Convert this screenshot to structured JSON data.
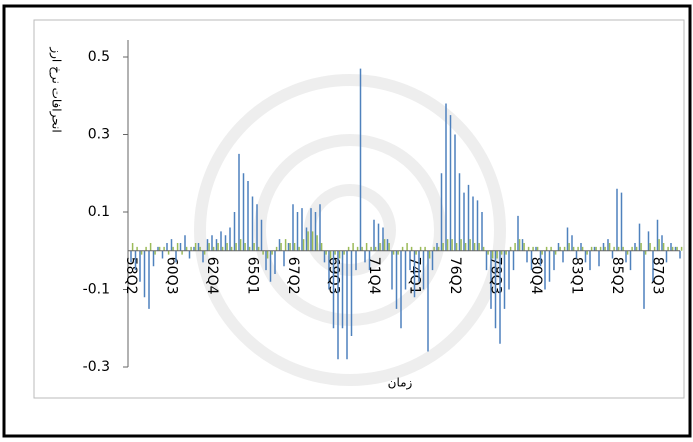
{
  "chart_data": {
    "type": "bar",
    "y_label": "انحرافات نرخ ارز",
    "x_label": "زمان",
    "categories": [
      "58Q2",
      null,
      null,
      null,
      null,
      null,
      null,
      null,
      null,
      "60Q3",
      null,
      null,
      null,
      null,
      null,
      null,
      null,
      null,
      "62Q4",
      null,
      null,
      null,
      null,
      null,
      null,
      null,
      null,
      "65Q1",
      null,
      null,
      null,
      null,
      null,
      null,
      null,
      null,
      "67Q2",
      null,
      null,
      null,
      null,
      null,
      null,
      null,
      null,
      "69Q3",
      null,
      null,
      null,
      null,
      null,
      null,
      null,
      null,
      "71Q4",
      null,
      null,
      null,
      null,
      null,
      null,
      null,
      null,
      "74Q1",
      null,
      null,
      null,
      null,
      null,
      null,
      null,
      null,
      "76Q2",
      null,
      null,
      null,
      null,
      null,
      null,
      null,
      null,
      "78Q3",
      null,
      null,
      null,
      null,
      null,
      null,
      null,
      null,
      "80Q4",
      null,
      null,
      null,
      null,
      null,
      null,
      null,
      null,
      "83Q1",
      null,
      null,
      null,
      null,
      null,
      null,
      null,
      null,
      "85Q2",
      null,
      null,
      null,
      null,
      null,
      null,
      null,
      null,
      "87Q3",
      null,
      null,
      null,
      null,
      null
    ],
    "series": [
      {
        "color": "#4f81bd",
        "values": [
          -0.03,
          -0.05,
          -0.08,
          -0.12,
          -0.15,
          -0.04,
          0.01,
          -0.02,
          0.02,
          0.03,
          -0.03,
          0.02,
          0.04,
          -0.02,
          0.01,
          0.02,
          -0.03,
          0.03,
          0.04,
          0.03,
          0.05,
          0.04,
          0.06,
          0.1,
          0.25,
          0.2,
          0.18,
          0.14,
          0.12,
          0.08,
          -0.05,
          -0.08,
          -0.06,
          0.03,
          -0.04,
          0.02,
          0.12,
          0.1,
          0.11,
          0.06,
          0.11,
          0.1,
          0.12,
          -0.03,
          -0.1,
          -0.2,
          -0.28,
          -0.2,
          -0.28,
          -0.22,
          -0.05,
          0.47,
          -0.03,
          -0.05,
          0.08,
          0.07,
          0.06,
          0.03,
          -0.1,
          -0.15,
          -0.2,
          -0.1,
          -0.05,
          -0.12,
          -0.08,
          -0.1,
          -0.26,
          -0.05,
          0.02,
          0.2,
          0.38,
          0.35,
          0.3,
          0.2,
          0.15,
          0.17,
          0.14,
          0.13,
          0.1,
          -0.05,
          -0.15,
          -0.2,
          -0.24,
          -0.15,
          -0.1,
          -0.05,
          0.09,
          0.03,
          -0.03,
          -0.05,
          0.01,
          -0.04,
          -0.1,
          -0.08,
          -0.05,
          0.02,
          -0.03,
          0.06,
          0.04,
          -0.02,
          0.02,
          -0.03,
          -0.05,
          0.01,
          -0.04,
          0.02,
          0.03,
          -0.02,
          0.16,
          0.15,
          -0.03,
          -0.05,
          0.02,
          0.07,
          -0.15,
          0.05,
          -0.08,
          0.08,
          0.04,
          -0.03,
          0.02,
          0.01,
          -0.02
        ]
      },
      {
        "color": "#9bbb59",
        "values": [
          0.02,
          0.01,
          -0.01,
          0.01,
          0.02,
          -0.01,
          0.01,
          0.01,
          -0.01,
          0.01,
          0.02,
          -0.01,
          0.01,
          0.01,
          0.02,
          0.01,
          -0.01,
          0.02,
          0.01,
          0.02,
          0.01,
          0.02,
          0.01,
          0.02,
          0.03,
          0.02,
          0.01,
          0.02,
          0.01,
          -0.01,
          -0.02,
          -0.01,
          0.01,
          0.02,
          0.03,
          0.02,
          0.02,
          0.01,
          0.03,
          0.05,
          0.05,
          0.04,
          0.02,
          -0.01,
          -0.02,
          -0.01,
          -0.02,
          -0.01,
          0.01,
          0.02,
          0.01,
          0.01,
          0.02,
          0.01,
          0.01,
          0.02,
          0.03,
          0.02,
          -0.01,
          -0.01,
          0.01,
          0.02,
          0.01,
          -0.01,
          0.01,
          0.01,
          -0.02,
          0.01,
          0.01,
          0.02,
          0.03,
          0.03,
          0.02,
          0.03,
          0.02,
          0.03,
          0.02,
          0.02,
          0.01,
          -0.01,
          -0.02,
          -0.02,
          -0.01,
          -0.01,
          0.01,
          0.02,
          0.03,
          0.02,
          0.01,
          0.01,
          0.01,
          -0.01,
          0.01,
          0.01,
          -0.01,
          0.01,
          0.01,
          0.02,
          0.01,
          0.01,
          0.01,
          -0.01,
          0.01,
          0.01,
          0.01,
          0.01,
          0.02,
          0.01,
          0.01,
          0.01,
          -0.01,
          0.01,
          0.01,
          0.02,
          -0.01,
          0.02,
          0.01,
          0.03,
          0.02,
          0.01,
          0.01,
          0.01,
          0.01
        ]
      }
    ],
    "ylim": [
      -0.3,
      0.5
    ],
    "yticks": [
      -0.3,
      -0.1,
      0.1,
      0.3,
      0.5
    ]
  }
}
